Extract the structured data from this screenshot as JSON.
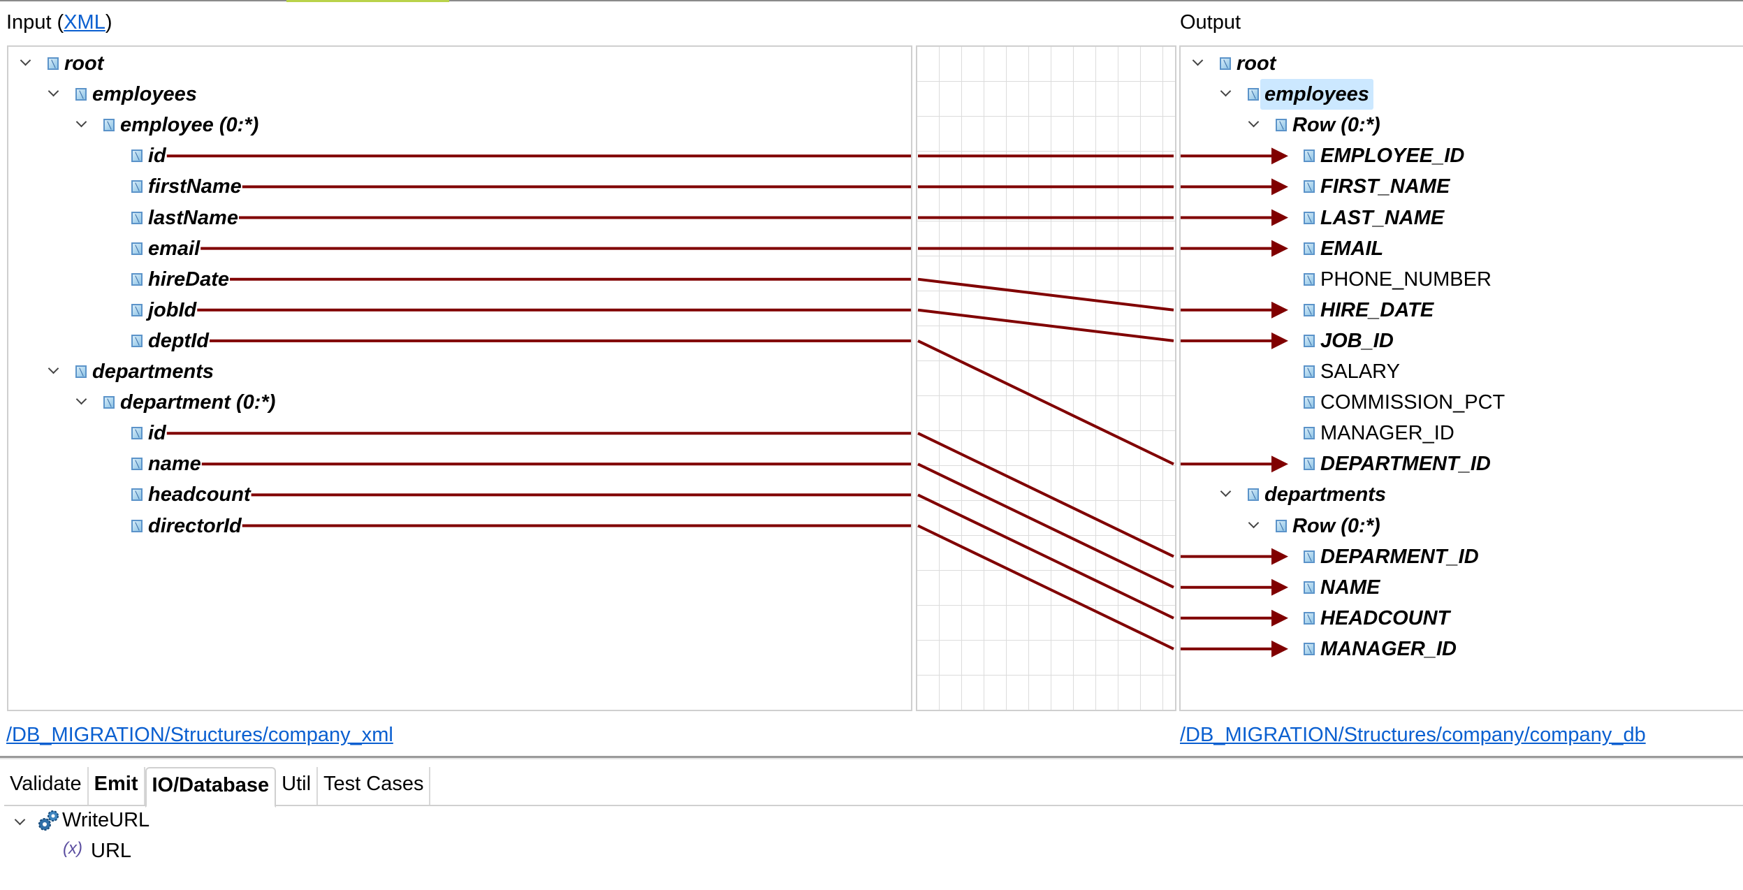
{
  "input": {
    "header_prefix": "Input (",
    "header_link": "XML",
    "header_suffix": ")",
    "path_link": "/DB_MIGRATION/Structures/company_xml",
    "tree": [
      {
        "label": "root",
        "level": 0,
        "expand": true,
        "bold": true
      },
      {
        "label": "employees",
        "level": 1,
        "expand": true,
        "bold": true
      },
      {
        "label": "employee (0:*)",
        "level": 2,
        "expand": true,
        "bold": true
      },
      {
        "label": "id",
        "level": 3,
        "bold": true
      },
      {
        "label": "firstName",
        "level": 3,
        "bold": true
      },
      {
        "label": "lastName",
        "level": 3,
        "bold": true
      },
      {
        "label": "email",
        "level": 3,
        "bold": true
      },
      {
        "label": "hireDate",
        "level": 3,
        "bold": true
      },
      {
        "label": "jobId",
        "level": 3,
        "bold": true
      },
      {
        "label": "deptId",
        "level": 3,
        "bold": true
      },
      {
        "label": "departments",
        "level": 1,
        "expand": true,
        "bold": true
      },
      {
        "label": "department (0:*)",
        "level": 2,
        "expand": true,
        "bold": true
      },
      {
        "label": "id",
        "level": 3,
        "bold": true
      },
      {
        "label": "name",
        "level": 3,
        "bold": true
      },
      {
        "label": "headcount",
        "level": 3,
        "bold": true
      },
      {
        "label": "directorId",
        "level": 3,
        "bold": true
      }
    ]
  },
  "output": {
    "header": "Output",
    "path_link": "/DB_MIGRATION/Structures/company/company_db",
    "tree": [
      {
        "label": "root",
        "level": 0,
        "expand": true,
        "bold": true
      },
      {
        "label": "employees",
        "level": 1,
        "expand": true,
        "bold": true,
        "selected": true
      },
      {
        "label": "Row (0:*)",
        "level": 2,
        "expand": true,
        "bold": true
      },
      {
        "label": "EMPLOYEE_ID",
        "level": 3,
        "bold": true
      },
      {
        "label": "FIRST_NAME",
        "level": 3,
        "bold": true
      },
      {
        "label": "LAST_NAME",
        "level": 3,
        "bold": true
      },
      {
        "label": "EMAIL",
        "level": 3,
        "bold": true
      },
      {
        "label": "PHONE_NUMBER",
        "level": 3,
        "bold": false
      },
      {
        "label": "HIRE_DATE",
        "level": 3,
        "bold": true
      },
      {
        "label": "JOB_ID",
        "level": 3,
        "bold": true
      },
      {
        "label": "SALARY",
        "level": 3,
        "bold": false
      },
      {
        "label": "COMMISSION_PCT",
        "level": 3,
        "bold": false
      },
      {
        "label": "MANAGER_ID",
        "level": 3,
        "bold": false
      },
      {
        "label": "DEPARTMENT_ID",
        "level": 3,
        "bold": true
      },
      {
        "label": "departments",
        "level": 1,
        "expand": true,
        "bold": true
      },
      {
        "label": "Row (0:*)",
        "level": 2,
        "expand": true,
        "bold": true
      },
      {
        "label": "DEPARMENT_ID",
        "level": 3,
        "bold": true
      },
      {
        "label": "NAME",
        "level": 3,
        "bold": true
      },
      {
        "label": "HEADCOUNT",
        "level": 3,
        "bold": true
      },
      {
        "label": "MANAGER_ID",
        "level": 3,
        "bold": true
      }
    ]
  },
  "mappings": [
    [
      3,
      3
    ],
    [
      4,
      4
    ],
    [
      5,
      5
    ],
    [
      6,
      6
    ],
    [
      7,
      8
    ],
    [
      8,
      9
    ],
    [
      9,
      13
    ],
    [
      12,
      16
    ],
    [
      13,
      17
    ],
    [
      14,
      18
    ],
    [
      15,
      19
    ]
  ],
  "mapping_color": "#800000",
  "tabs": [
    {
      "label": "Validate",
      "bold": false,
      "active": false
    },
    {
      "label": "Emit",
      "bold": true,
      "active": false
    },
    {
      "label": "IO/Database",
      "bold": true,
      "active": true
    },
    {
      "label": "Util",
      "bold": false,
      "active": false
    },
    {
      "label": "Test Cases",
      "bold": false,
      "active": false
    }
  ],
  "function_tree": {
    "group": {
      "label": "WriteURL",
      "icon": "gears-icon"
    },
    "item": {
      "label": "URL",
      "icon": "variable-icon"
    }
  }
}
